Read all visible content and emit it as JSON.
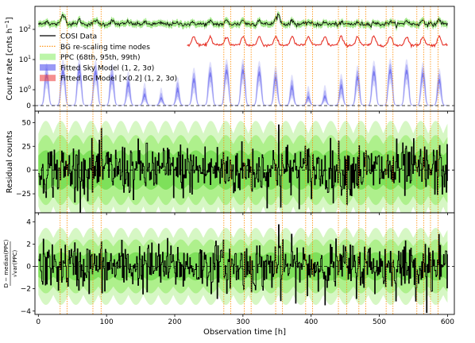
{
  "chart_data": {
    "type": "line",
    "x_axis": {
      "label": "Observation time [h]",
      "range": [
        -5,
        610
      ],
      "ticks": [
        0,
        100,
        200,
        300,
        400,
        500,
        600
      ],
      "tick_labels": [
        "0",
        "100",
        "200",
        "300",
        "400",
        "500",
        "600"
      ]
    },
    "vertical_markers": {
      "description": "BG re-scaling time nodes",
      "color": "#ff8c00",
      "x": [
        32,
        42,
        80,
        92,
        272,
        282,
        302,
        312,
        348,
        358,
        392,
        402,
        440,
        452,
        470,
        480,
        510,
        520,
        555,
        565,
        575,
        586
      ]
    },
    "panels": [
      {
        "id": "top",
        "ylabel": "Count rate [cnts h$^{-1}$]",
        "y_scale": "symlog",
        "ytick_labels": [
          "10$^2$",
          "10$^1$",
          "10$^0$",
          "0"
        ],
        "ytick_values": [
          100,
          10,
          1,
          0
        ],
        "legend_position": "upper left",
        "legend": [
          {
            "label": "COSI Data",
            "kind": "line",
            "color": "#000000"
          },
          {
            "label": "BG re-scaling time nodes",
            "kind": "dotted",
            "color": "#ff8c00"
          },
          {
            "label": "PPC (68th, 95th, 99th)",
            "kind": "patch",
            "color": "#90ee70"
          },
          {
            "label": "Fitted Sky Model (1, 2, 3$\\sigma$)",
            "kind": "patch",
            "color": "#5555ee"
          },
          {
            "label": "Fitted BG Model [×0.2] (1, 2, 3$\\sigma$)",
            "kind": "patch",
            "color": "#ee4444"
          }
        ],
        "series": [
          {
            "name": "COSI Data",
            "color": "#000000",
            "baseline": 170,
            "scale": "log"
          },
          {
            "name": "Fitted Sky Model (1, 2, 3$\\sigma$)",
            "color": "#4444ee",
            "scale": "log",
            "peak_period_h": 24,
            "peak_max": 5
          },
          {
            "name": "Fitted BG Model [×0.2] (1, 2, 3$\\sigma$)",
            "color": "#ee3333",
            "scale": "log",
            "x_start": 218,
            "baseline": 30
          }
        ]
      },
      {
        "id": "middle",
        "ylabel": "Residual counts",
        "ylim": [
          -45,
          62
        ],
        "ticks": [
          -25,
          0,
          25,
          50
        ],
        "tick_labels": [
          "−25",
          "0",
          "25",
          "50"
        ],
        "ppc_bands": [
          18,
          32,
          45
        ],
        "residual_amplitude": 14
      },
      {
        "id": "bottom",
        "ylabel": "$\\frac{D - \\mathrm{median(PPC)}}{\\sqrt{\\mathrm{var(PPC)}}}$",
        "ylabel_rendered": "D − median(PPC) / √var(PPC)",
        "ylim": [
          -4.3,
          4.8
        ],
        "ticks": [
          -4,
          -2,
          0,
          2,
          4
        ],
        "tick_labels": [
          "−4",
          "−2",
          "0",
          "2",
          "4"
        ],
        "ppc_bands": [
          1.1,
          2.1,
          3.0
        ],
        "residual_amplitude": 1.1
      }
    ]
  }
}
